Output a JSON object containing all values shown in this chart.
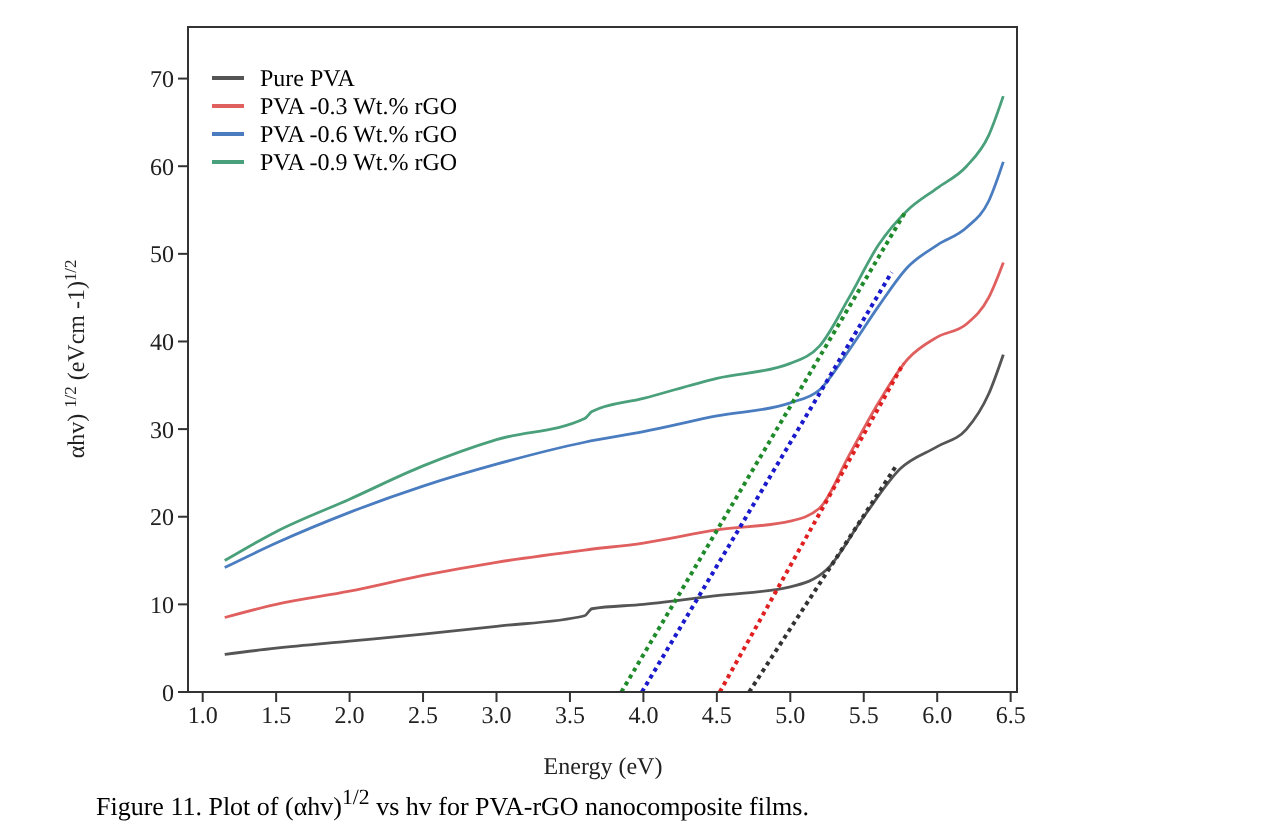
{
  "chart_data": {
    "type": "line",
    "xlabel": "Energy (eV)",
    "ylabel": "αhv) $^{1/2}$ (eVcm -1)$^{1/2}$",
    "annotations": [
      "Figure 11. Plot of (αhv)$^{1/2}$ vs hv for PVA-rGO nanocomposite films."
    ],
    "xlim": [
      0.9,
      6.55
    ],
    "xticks": [
      {
        "value": 1,
        "label": "1.0"
      },
      1.5,
      {
        "value": 2,
        "label": "2.0"
      },
      2.5,
      {
        "value": 3,
        "label": "3.0"
      },
      3.5,
      {
        "value": 4,
        "label": "4.0"
      },
      4.5,
      {
        "value": 5,
        "label": "5.0"
      },
      5.5,
      {
        "value": 6,
        "label": "6.0"
      },
      6.5
    ],
    "ylim": [
      0,
      76
    ],
    "yticks": [
      0,
      10,
      20,
      30,
      40,
      50,
      60,
      70
    ],
    "grid": false,
    "legend": "top left",
    "marker": "none",
    "line_style": "solid",
    "series": [
      {
        "name": "Pure PVA",
        "color": "#555555",
        "x": [
          1.15,
          1.5,
          2.0,
          2.5,
          3.0,
          3.6,
          3.65,
          4.0,
          4.5,
          5.0,
          5.25,
          5.5,
          5.75,
          6.0,
          6.2,
          6.35,
          6.45
        ],
        "values": [
          4.3,
          5,
          5.8,
          6.6,
          7.5,
          8.7,
          9.5,
          10,
          11,
          12,
          14,
          20,
          25.5,
          28,
          30,
          34,
          38.5
        ]
      },
      {
        "name": "PVA -0.3 Wt.% rGO",
        "color": "#e06060",
        "x": [
          1.15,
          1.5,
          2.0,
          2.5,
          3.0,
          3.6,
          4.0,
          4.5,
          5.0,
          5.2,
          5.4,
          5.6,
          5.8,
          6.0,
          6.2,
          6.35,
          6.45
        ],
        "values": [
          8.5,
          10,
          11.5,
          13.3,
          14.8,
          16.2,
          17,
          18.5,
          19.5,
          21,
          27,
          33,
          38,
          40.5,
          42,
          45,
          49
        ]
      },
      {
        "name": "PVA -0.6 Wt.% rGO",
        "color": "#4a7cc0",
        "x": [
          1.15,
          1.5,
          2.0,
          2.5,
          3.0,
          3.6,
          4.0,
          4.5,
          5.0,
          5.2,
          5.4,
          5.6,
          5.8,
          6.0,
          6.2,
          6.35,
          6.45
        ],
        "values": [
          14.2,
          17,
          20.5,
          23.5,
          26,
          28.5,
          29.7,
          31.5,
          33,
          34.5,
          39,
          44,
          48.5,
          51,
          53,
          56,
          60.5
        ]
      },
      {
        "name": "PVA -0.9 Wt.% rGO",
        "color": "#4aa07a",
        "x": [
          1.15,
          1.5,
          2.0,
          2.5,
          3.0,
          3.6,
          3.65,
          4.0,
          4.5,
          5.0,
          5.2,
          5.4,
          5.6,
          5.8,
          6.0,
          6.2,
          6.35,
          6.45
        ],
        "values": [
          15,
          18.3,
          22,
          25.8,
          28.8,
          31.2,
          32,
          33.5,
          35.8,
          37.5,
          39.5,
          45,
          51,
          55,
          57.5,
          60,
          63.5,
          68
        ]
      },
      {
        "color": "#333333",
        "line_style": "dotted",
        "x": [
          4.72,
          5.72
        ],
        "values": [
          0,
          25.8
        ]
      },
      {
        "color": "#e02020",
        "line_style": "dotted",
        "x": [
          4.52,
          5.77
        ],
        "values": [
          0,
          37.5
        ]
      },
      {
        "color": "#1a1acc",
        "line_style": "dotted",
        "x": [
          3.99,
          5.69
        ],
        "values": [
          0,
          47.9
        ]
      },
      {
        "color": "#1f8a2a",
        "line_style": "dotted",
        "x": [
          3.85,
          5.78
        ],
        "values": [
          0,
          54.7
        ]
      }
    ]
  }
}
